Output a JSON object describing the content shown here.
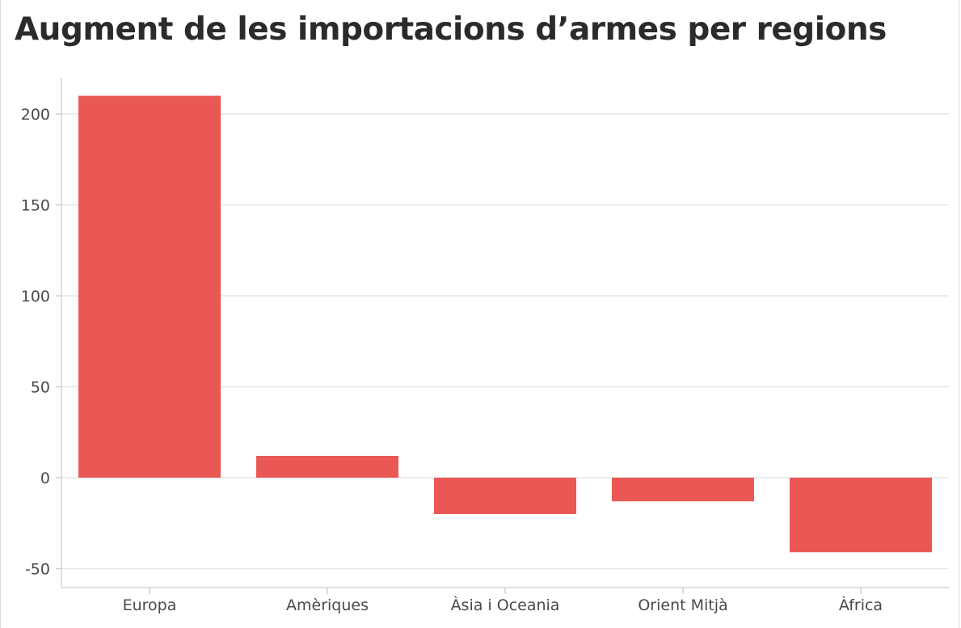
{
  "chart_data": {
    "type": "bar",
    "title": "Augment de les importacions d’armes per regions",
    "xlabel": "",
    "ylabel": "",
    "categories": [
      "Europa",
      "Amèriques",
      "Àsia i Oceania",
      "Orient Mitjà",
      "Àfrica"
    ],
    "values": [
      210,
      12,
      -20,
      -13,
      -41
    ],
    "ylim": [
      -60,
      220
    ],
    "yticks": [
      -50,
      0,
      50,
      100,
      150,
      200
    ],
    "ytick_labels": [
      "-50",
      "0",
      "50",
      "100",
      "150",
      "200"
    ],
    "grid": true,
    "legend": "none",
    "bar_color": "#e84a48"
  }
}
